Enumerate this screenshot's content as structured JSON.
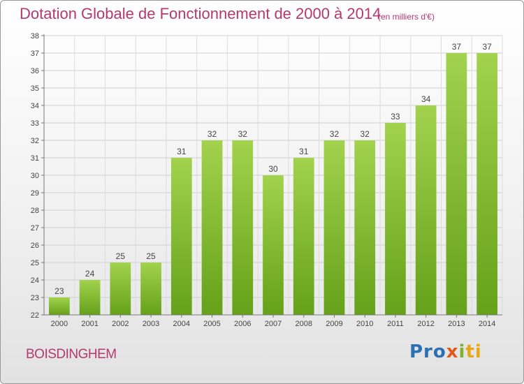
{
  "chart_data": {
    "type": "bar",
    "title": "Dotation Globale de Fonctionnement de 2000 à 2014",
    "subtitle": "(en milliers d'€)",
    "categories": [
      "2000",
      "2001",
      "2002",
      "2003",
      "2004",
      "2005",
      "2006",
      "2007",
      "2008",
      "2009",
      "2010",
      "2011",
      "2012",
      "2013",
      "2014"
    ],
    "values": [
      23,
      24,
      25,
      25,
      31,
      32,
      32,
      30,
      31,
      32,
      32,
      33,
      34,
      37,
      37
    ],
    "ylim": [
      22,
      38
    ],
    "yticks": [
      22,
      23,
      24,
      25,
      26,
      27,
      28,
      29,
      30,
      31,
      32,
      33,
      34,
      35,
      36,
      37,
      38
    ],
    "grid": true,
    "bar_color": "#8cc43f"
  },
  "footer": {
    "town": "BOISDINGHEM",
    "logo": {
      "part1": "Pro",
      "part2": "x",
      "part3": "i",
      "part4": "ti"
    }
  }
}
